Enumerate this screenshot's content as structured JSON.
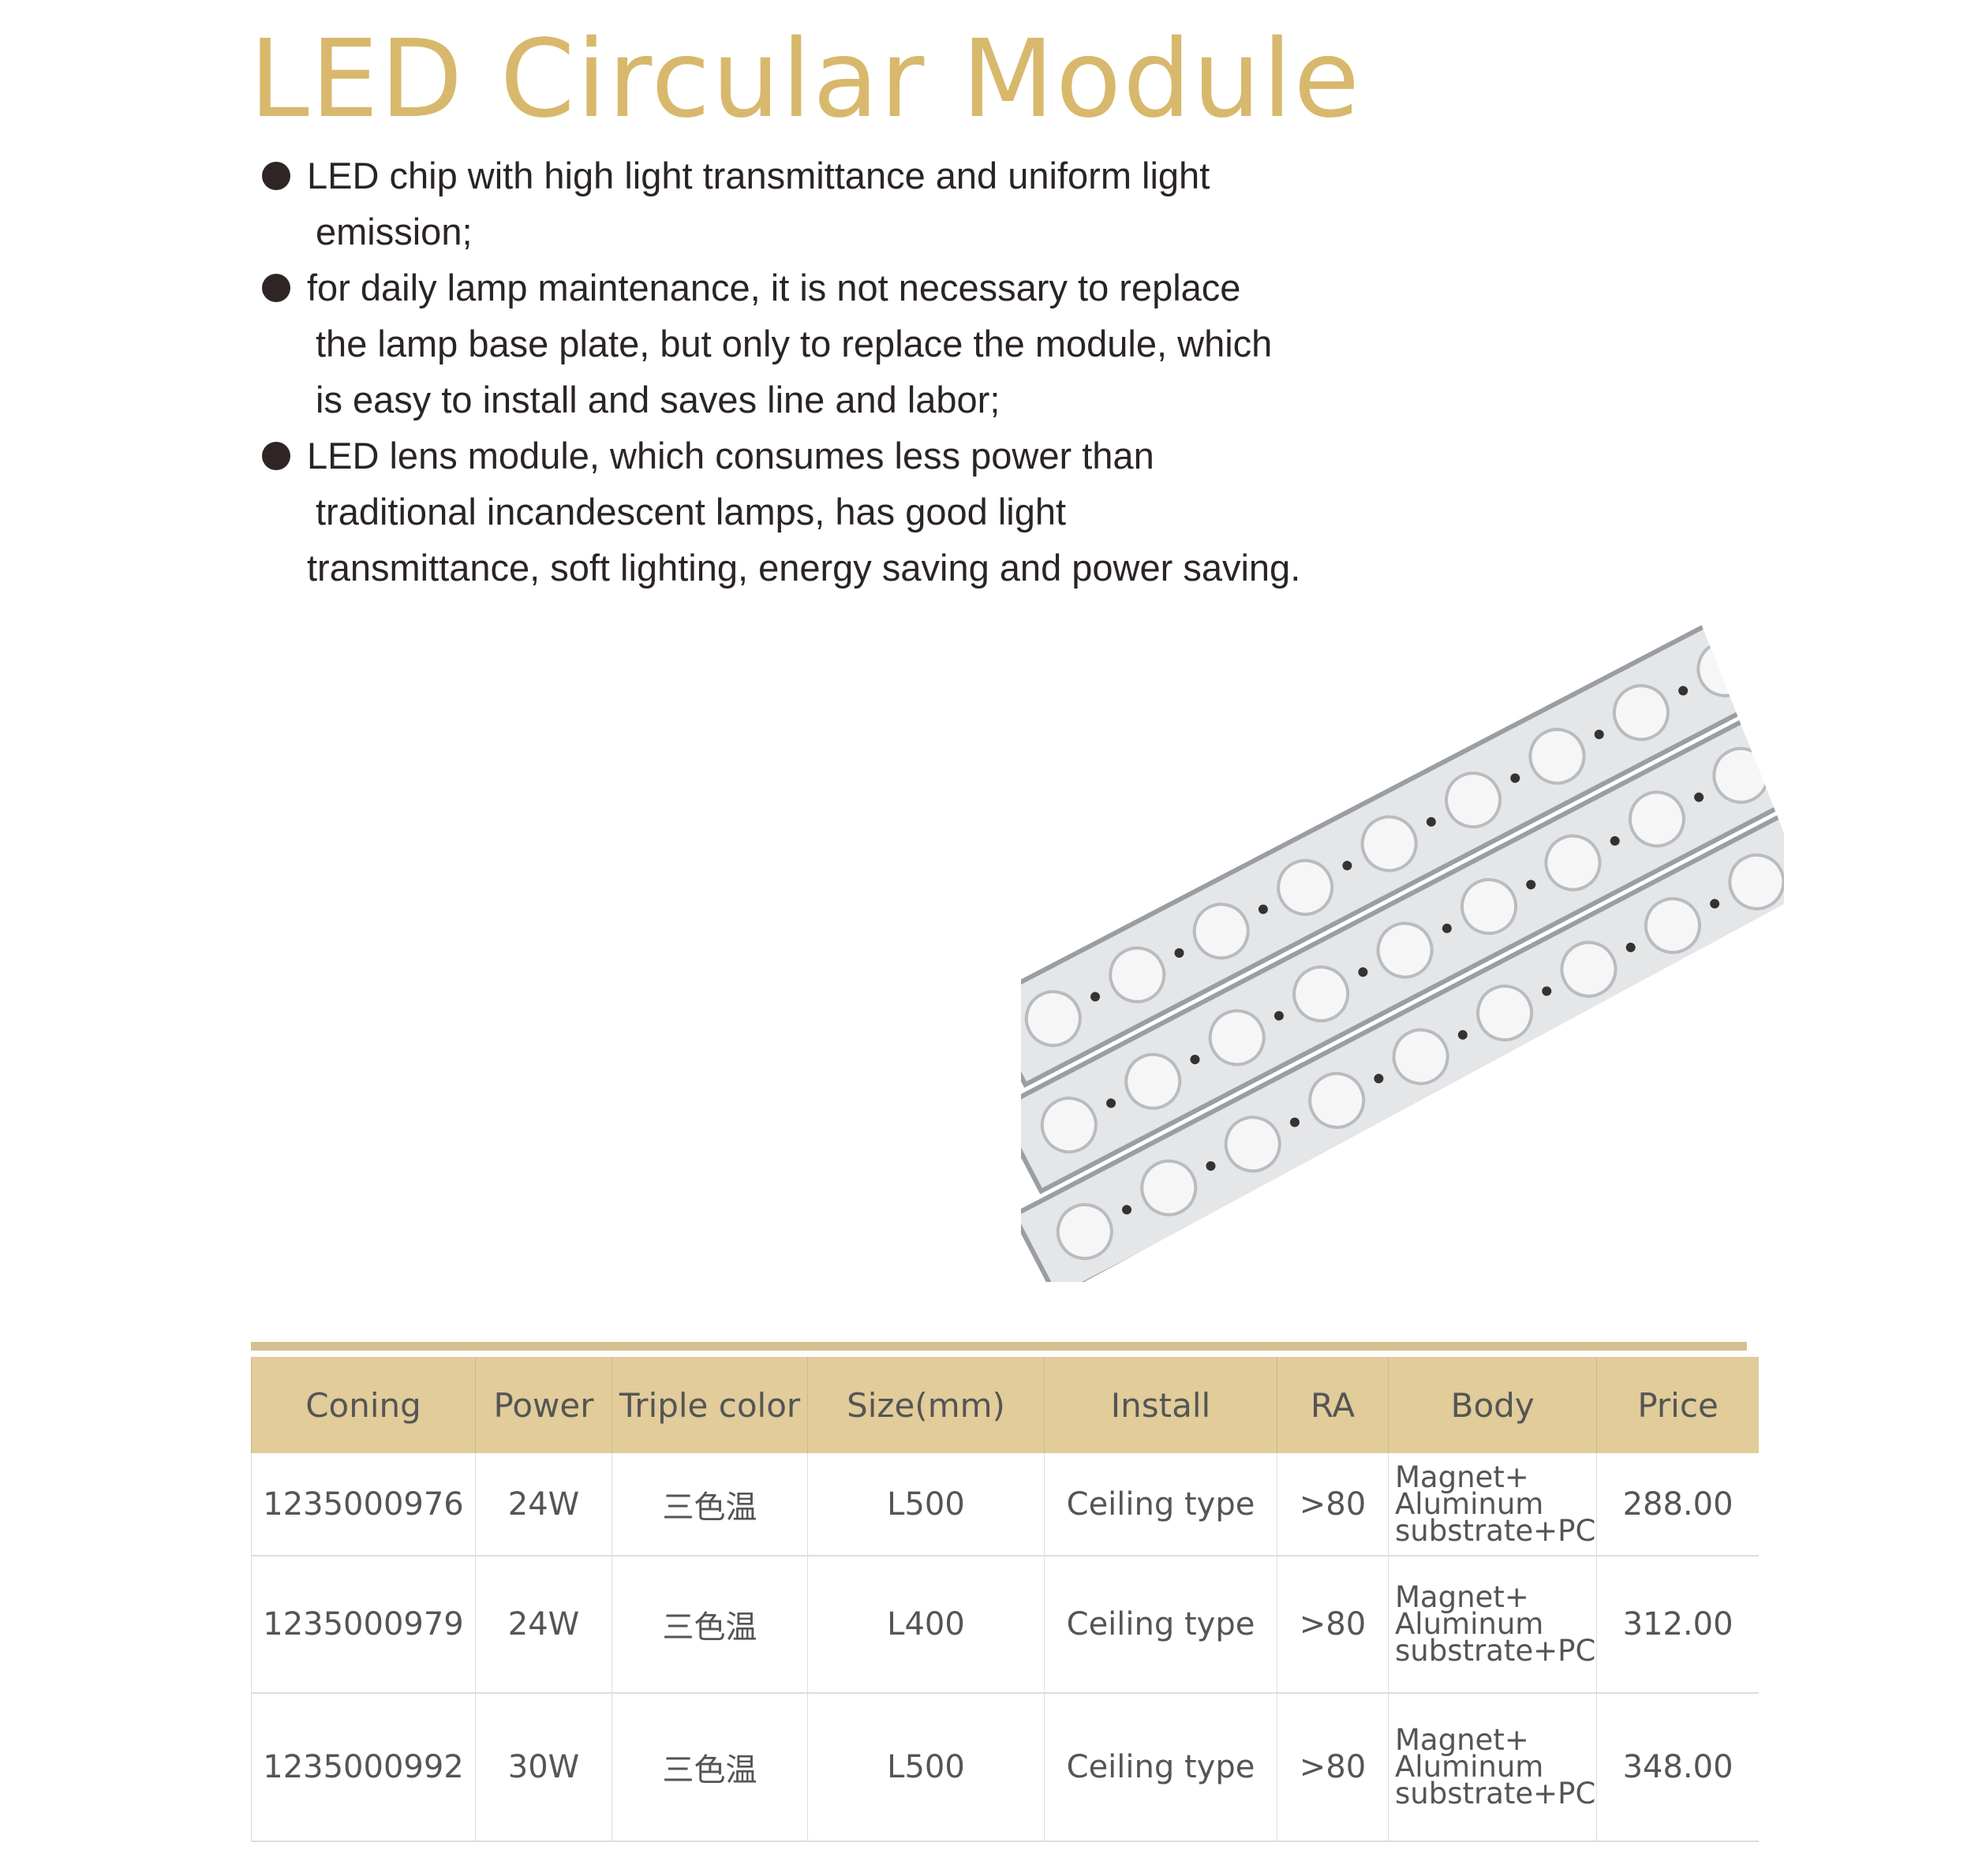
{
  "title": "LED Circular Module",
  "bullets": [
    {
      "lines": [
        "LED chip with high light transmittance and uniform light",
        "emission;"
      ]
    },
    {
      "lines": [
        "for daily lamp maintenance, it is not necessary to replace",
        "the lamp base plate, but only to replace the module, which",
        "is easy to install and saves line and labor;"
      ]
    },
    {
      "lines": [
        "LED lens module, which consumes less power than",
        "traditional incandescent lamps, has good light",
        "transmittance, soft lighting, energy saving and power saving."
      ]
    }
  ],
  "colors": {
    "title": "#d8b86c",
    "header_bg": "#e1cc9a",
    "bar": "#d6bf8f"
  },
  "table": {
    "headers": [
      "Coning",
      "Power",
      "Triple color",
      "Size(mm)",
      "Install",
      "RA",
      "Body",
      "Price"
    ],
    "rows": [
      [
        "1235000976",
        "24W",
        "三色温",
        "L500",
        "Ceiling type",
        ">80",
        [
          "Magnet+",
          "Aluminum",
          "substrate+PC"
        ],
        "288.00"
      ],
      [
        "1235000979",
        "24W",
        "三色温",
        "L400",
        "Ceiling type",
        ">80",
        [
          "Magnet+",
          "Aluminum",
          "substrate+PC"
        ],
        "312.00"
      ],
      [
        "1235000992",
        "30W",
        "三色温",
        "L500",
        "Ceiling type",
        ">80",
        [
          "Magnet+",
          "Aluminum",
          "substrate+PC"
        ],
        "348.00"
      ]
    ]
  }
}
